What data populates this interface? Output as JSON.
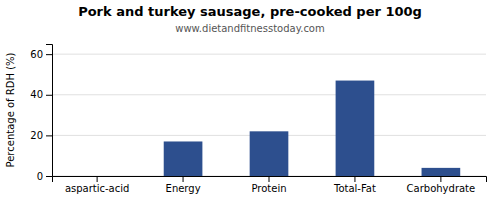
{
  "chart_data": {
    "type": "bar",
    "title": "Pork and turkey sausage, pre-cooked per 100g",
    "subtitle": "www.dietandfitnesstoday.com",
    "categories": [
      "aspartic-acid",
      "Energy",
      "Protein",
      "Total-Fat",
      "Carbohydrate"
    ],
    "values": [
      0,
      17,
      22,
      47,
      4
    ],
    "color": "#2d4f8e",
    "ylabel": "Percentage of RDH (%)",
    "ylim": [
      0,
      65
    ],
    "yticks": [
      0,
      20,
      40,
      60
    ],
    "grid": true
  }
}
